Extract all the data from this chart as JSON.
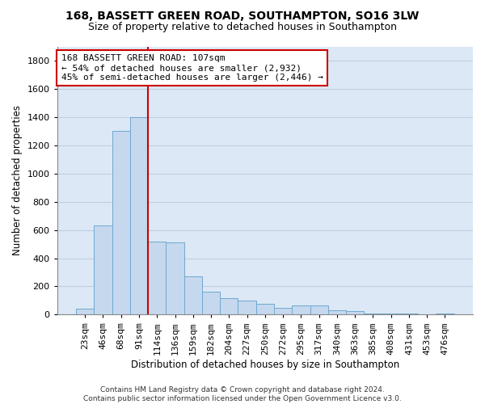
{
  "title1": "168, BASSETT GREEN ROAD, SOUTHAMPTON, SO16 3LW",
  "title2": "Size of property relative to detached houses in Southampton",
  "xlabel": "Distribution of detached houses by size in Southampton",
  "ylabel": "Number of detached properties",
  "categories": [
    "23sqm",
    "46sqm",
    "68sqm",
    "91sqm",
    "114sqm",
    "136sqm",
    "159sqm",
    "182sqm",
    "204sqm",
    "227sqm",
    "250sqm",
    "272sqm",
    "295sqm",
    "317sqm",
    "340sqm",
    "363sqm",
    "385sqm",
    "408sqm",
    "431sqm",
    "453sqm",
    "476sqm"
  ],
  "values": [
    40,
    630,
    1300,
    1400,
    520,
    510,
    270,
    160,
    115,
    100,
    75,
    50,
    65,
    65,
    30,
    25,
    10,
    10,
    10,
    5,
    10
  ],
  "bar_color": "#c5d8ee",
  "bar_edge_color": "#6fa8d0",
  "vline_color": "#cc0000",
  "annotation_text": "168 BASSETT GREEN ROAD: 107sqm\n← 54% of detached houses are smaller (2,932)\n45% of semi-detached houses are larger (2,446) →",
  "annotation_box_color": "white",
  "annotation_box_edgecolor": "#cc0000",
  "ylim": [
    0,
    1900
  ],
  "yticks": [
    0,
    200,
    400,
    600,
    800,
    1000,
    1200,
    1400,
    1600,
    1800
  ],
  "grid_color": "#c0cfe0",
  "bg_color": "#dce8f5",
  "footnote": "Contains HM Land Registry data © Crown copyright and database right 2024.\nContains public sector information licensed under the Open Government Licence v3.0.",
  "title1_fontsize": 10,
  "title2_fontsize": 9,
  "annot_fontsize": 8,
  "xlabel_fontsize": 8.5,
  "ylabel_fontsize": 8.5,
  "tick_fontsize": 8,
  "footnote_fontsize": 6.5
}
